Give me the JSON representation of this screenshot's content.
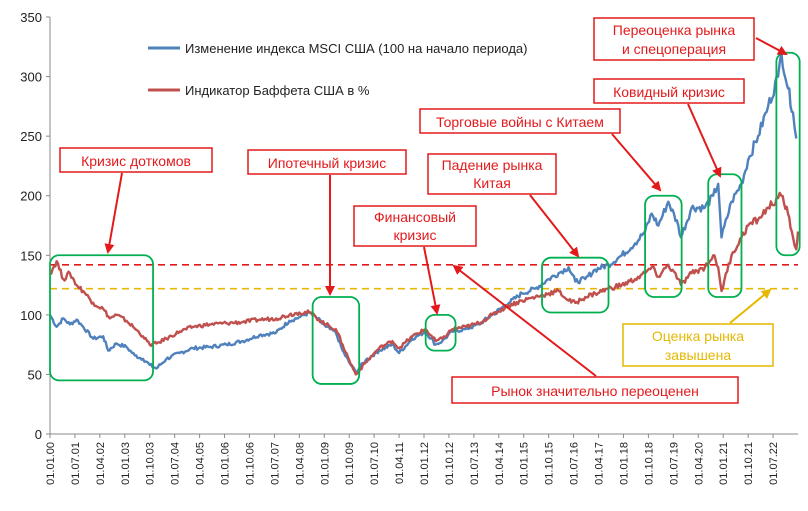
{
  "chart_data": {
    "type": "line",
    "ylim": [
      0,
      350
    ],
    "yticks": [
      0,
      50,
      100,
      150,
      200,
      250,
      300,
      350
    ],
    "x_tick_labels": [
      "01.01.00",
      "01.07.01",
      "01.04.02",
      "01.01.03",
      "01.10.03",
      "01.07.04",
      "01.04.05",
      "01.01.06",
      "01.10.06",
      "01.07.07",
      "01.04.08",
      "01.01.09",
      "01.10.09",
      "01.07.10",
      "01.04.11",
      "01.01.12",
      "01.10.12",
      "01.07.13",
      "01.04.14",
      "01.01.15",
      "01.10.15",
      "01.07.16",
      "01.04.17",
      "01.01.18",
      "01.10.18",
      "01.07.19",
      "01.04.20",
      "01.01.21",
      "01.10.21",
      "01.07.22"
    ],
    "x_start": 2000.0,
    "x_end": 2022.5,
    "grid": false,
    "legend_placement": "top-left",
    "series": [
      {
        "name": "Изменение индекса MSCI США (100 на начало периода)",
        "color": "#4f81bd",
        "points": [
          [
            2000.0,
            100
          ],
          [
            2000.2,
            90
          ],
          [
            2000.4,
            97
          ],
          [
            2000.6,
            92
          ],
          [
            2000.8,
            96
          ],
          [
            2001.0,
            90
          ],
          [
            2001.3,
            80
          ],
          [
            2001.6,
            82
          ],
          [
            2001.75,
            70
          ],
          [
            2002.0,
            76
          ],
          [
            2002.3,
            73
          ],
          [
            2002.55,
            66
          ],
          [
            2002.8,
            63
          ],
          [
            2003.0,
            58
          ],
          [
            2003.2,
            55
          ],
          [
            2003.5,
            63
          ],
          [
            2003.9,
            68
          ],
          [
            2004.3,
            72
          ],
          [
            2004.8,
            73
          ],
          [
            2005.3,
            75
          ],
          [
            2005.8,
            78
          ],
          [
            2006.3,
            83
          ],
          [
            2006.8,
            85
          ],
          [
            2007.2,
            95
          ],
          [
            2007.5,
            98
          ],
          [
            2007.8,
            102
          ],
          [
            2008.0,
            98
          ],
          [
            2008.3,
            90
          ],
          [
            2008.6,
            85
          ],
          [
            2008.8,
            70
          ],
          [
            2009.0,
            60
          ],
          [
            2009.2,
            52
          ],
          [
            2009.5,
            62
          ],
          [
            2009.9,
            70
          ],
          [
            2010.3,
            75
          ],
          [
            2010.5,
            68
          ],
          [
            2010.9,
            80
          ],
          [
            2011.3,
            86
          ],
          [
            2011.6,
            75
          ],
          [
            2011.8,
            78
          ],
          [
            2012.1,
            86
          ],
          [
            2012.5,
            88
          ],
          [
            2012.9,
            92
          ],
          [
            2013.3,
            100
          ],
          [
            2013.8,
            110
          ],
          [
            2014.2,
            118
          ],
          [
            2014.6,
            122
          ],
          [
            2015.0,
            130
          ],
          [
            2015.3,
            135
          ],
          [
            2015.6,
            140
          ],
          [
            2015.8,
            128
          ],
          [
            2016.1,
            130
          ],
          [
            2016.4,
            138
          ],
          [
            2016.8,
            142
          ],
          [
            2017.2,
            150
          ],
          [
            2017.6,
            160
          ],
          [
            2017.9,
            170
          ],
          [
            2018.1,
            185
          ],
          [
            2018.3,
            175
          ],
          [
            2018.6,
            195
          ],
          [
            2018.9,
            175
          ],
          [
            2018.98,
            165
          ],
          [
            2019.3,
            190
          ],
          [
            2019.7,
            190
          ],
          [
            2019.95,
            200
          ],
          [
            2020.1,
            210
          ],
          [
            2020.2,
            165
          ],
          [
            2020.5,
            195
          ],
          [
            2020.8,
            210
          ],
          [
            2021.0,
            230
          ],
          [
            2021.3,
            250
          ],
          [
            2021.6,
            275
          ],
          [
            2021.9,
            300
          ],
          [
            2022.0,
            320
          ],
          [
            2022.2,
            290
          ],
          [
            2022.35,
            270
          ],
          [
            2022.45,
            248
          ]
        ]
      },
      {
        "name": "Индикатор Баффета США в %",
        "color": "#c0504d",
        "points": [
          [
            2000.0,
            135
          ],
          [
            2000.2,
            145
          ],
          [
            2000.4,
            130
          ],
          [
            2000.6,
            135
          ],
          [
            2000.8,
            125
          ],
          [
            2001.0,
            120
          ],
          [
            2001.3,
            110
          ],
          [
            2001.6,
            105
          ],
          [
            2001.8,
            97
          ],
          [
            2002.0,
            100
          ],
          [
            2002.3,
            95
          ],
          [
            2002.5,
            90
          ],
          [
            2002.8,
            82
          ],
          [
            2003.0,
            75
          ],
          [
            2003.2,
            76
          ],
          [
            2003.5,
            80
          ],
          [
            2003.9,
            86
          ],
          [
            2004.3,
            90
          ],
          [
            2004.8,
            92
          ],
          [
            2005.3,
            93
          ],
          [
            2005.8,
            94
          ],
          [
            2006.3,
            96
          ],
          [
            2006.8,
            97
          ],
          [
            2007.2,
            100
          ],
          [
            2007.5,
            102
          ],
          [
            2007.8,
            102
          ],
          [
            2008.0,
            98
          ],
          [
            2008.3,
            92
          ],
          [
            2008.6,
            88
          ],
          [
            2008.8,
            75
          ],
          [
            2009.0,
            62
          ],
          [
            2009.2,
            50
          ],
          [
            2009.5,
            60
          ],
          [
            2009.9,
            72
          ],
          [
            2010.3,
            78
          ],
          [
            2010.5,
            72
          ],
          [
            2010.9,
            82
          ],
          [
            2011.3,
            88
          ],
          [
            2011.6,
            78
          ],
          [
            2011.8,
            80
          ],
          [
            2012.1,
            88
          ],
          [
            2012.5,
            90
          ],
          [
            2012.9,
            93
          ],
          [
            2013.3,
            100
          ],
          [
            2013.8,
            108
          ],
          [
            2014.2,
            112
          ],
          [
            2014.6,
            115
          ],
          [
            2015.0,
            118
          ],
          [
            2015.3,
            120
          ],
          [
            2015.6,
            112
          ],
          [
            2015.8,
            110
          ],
          [
            2016.1,
            115
          ],
          [
            2016.4,
            118
          ],
          [
            2016.8,
            122
          ],
          [
            2017.2,
            125
          ],
          [
            2017.6,
            130
          ],
          [
            2017.9,
            135
          ],
          [
            2018.1,
            140
          ],
          [
            2018.3,
            132
          ],
          [
            2018.6,
            142
          ],
          [
            2018.9,
            130
          ],
          [
            2018.98,
            125
          ],
          [
            2019.3,
            135
          ],
          [
            2019.7,
            140
          ],
          [
            2019.95,
            150
          ],
          [
            2020.1,
            140
          ],
          [
            2020.2,
            120
          ],
          [
            2020.5,
            150
          ],
          [
            2020.8,
            165
          ],
          [
            2021.0,
            175
          ],
          [
            2021.3,
            180
          ],
          [
            2021.6,
            190
          ],
          [
            2021.9,
            198
          ],
          [
            2022.0,
            200
          ],
          [
            2022.2,
            185
          ],
          [
            2022.35,
            165
          ],
          [
            2022.45,
            155
          ],
          [
            2022.5,
            170
          ]
        ]
      }
    ],
    "reference_lines": [
      {
        "value": 142,
        "color": "#e31a1c",
        "style": "dashed"
      },
      {
        "value": 122,
        "color": "#e6b800",
        "style": "dashed"
      }
    ],
    "highlight_boxes": [
      {
        "x0": 2000.0,
        "x1": 2003.1,
        "y0": 45,
        "y1": 150
      },
      {
        "x0": 2007.9,
        "x1": 2009.3,
        "y0": 42,
        "y1": 115
      },
      {
        "x0": 2011.3,
        "x1": 2012.2,
        "y0": 70,
        "y1": 100
      },
      {
        "x0": 2014.8,
        "x1": 2016.8,
        "y0": 102,
        "y1": 148
      },
      {
        "x0": 2017.9,
        "x1": 2019.0,
        "y0": 115,
        "y1": 200
      },
      {
        "x0": 2019.8,
        "x1": 2020.8,
        "y0": 115,
        "y1": 218
      },
      {
        "x0": 2021.85,
        "x1": 2022.55,
        "y0": 150,
        "y1": 320
      }
    ]
  },
  "legend": {
    "msci": "Изменение индекса MSCI США (100 на начало периода)",
    "buffett": "Индикатор Баффета США в %"
  },
  "annotations": {
    "dotcom": "Кризис доткомов",
    "mortgage": "Ипотечный кризис",
    "financial_1": "Финансовый",
    "financial_2": "кризис",
    "china_fall_1": "Падение рынка",
    "china_fall_2": "Китая",
    "trade_wars": "Торговые войны с Китаем",
    "covid": "Ковидный кризис",
    "overvalued_sop_1": "Переоценка рынка",
    "overvalued_sop_2": "и спецоперация",
    "overvalued_high": "Рынок значительно переоценен",
    "overvalued_1": "Оценка рынка",
    "overvalued_2": "завышена"
  },
  "colors": {
    "annotation_red": "#e31a1c",
    "annotation_orange": "#e6b800",
    "box_green": "#00b050",
    "axis": "#888888"
  }
}
